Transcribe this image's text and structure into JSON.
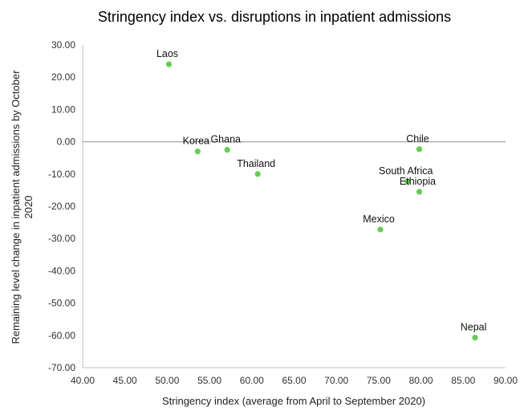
{
  "chart_data": {
    "type": "scatter",
    "title": "Stringency index vs. disruptions in inpatient admissions",
    "xlabel": "Stringency index (average from April to September 2020)",
    "ylabel": "Remaining level change in inpatient admissions by October 2020",
    "xlim": [
      40,
      90
    ],
    "ylim": [
      -70,
      30
    ],
    "xticks": [
      "40.00",
      "45.00",
      "50.00",
      "55.00",
      "60.00",
      "65.00",
      "70.00",
      "75.00",
      "80.00",
      "85.00",
      "90.00"
    ],
    "yticks": [
      "30.00",
      "20.00",
      "10.00",
      "0.00",
      "-10.00",
      "-20.00",
      "-30.00",
      "-40.00",
      "-50.00",
      "-60.00",
      "-70.00"
    ],
    "grid": false,
    "zero_line": true,
    "marker_color": "#66cc55",
    "points": [
      {
        "label": "Laos",
        "x": 50.2,
        "y": 24.0
      },
      {
        "label": "Korea",
        "x": 53.6,
        "y": -3.0
      },
      {
        "label": "Ghana",
        "x": 57.1,
        "y": -2.5
      },
      {
        "label": "Thailand",
        "x": 60.7,
        "y": -10.0
      },
      {
        "label": "Chile",
        "x": 79.8,
        "y": -2.3
      },
      {
        "label": "South Africa",
        "x": 78.4,
        "y": -12.3
      },
      {
        "label": "Ethiopia",
        "x": 79.8,
        "y": -15.5
      },
      {
        "label": "Mexico",
        "x": 75.2,
        "y": -27.2
      },
      {
        "label": "Nepal",
        "x": 86.4,
        "y": -60.7
      }
    ]
  }
}
